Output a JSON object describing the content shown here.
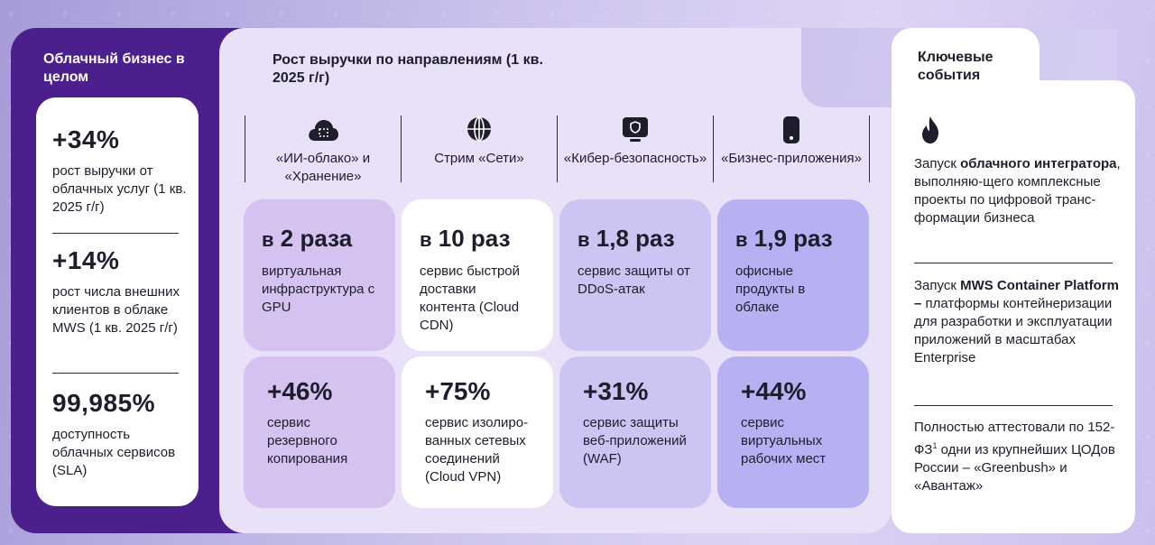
{
  "left": {
    "title": "Облачный бизнес в целом",
    "metrics": [
      {
        "value": "+34%",
        "desc": "рост выручки от облачных услуг (1 кв. 2025 г/г)"
      },
      {
        "value": "+14%",
        "desc": "рост числа внешних клиентов в облаке MWS (1 кв. 2025 г/г)"
      },
      {
        "value": "99,985%",
        "desc": "доступность облачных сервисов (SLA)"
      }
    ]
  },
  "middle": {
    "title": "Рост выручки по направлениям (1 кв. 2025 г/г)",
    "columns": [
      {
        "icon": "cloud-icon",
        "label": "«ИИ-облако» и «Хранение»"
      },
      {
        "icon": "globe-icon",
        "label": "Стрим «Сети»"
      },
      {
        "icon": "shield-monitor-icon",
        "label": "«Кибер-безопасность»"
      },
      {
        "icon": "phone-icon",
        "label": "«Бизнес-приложения»"
      }
    ],
    "row1": [
      {
        "prefix": "в",
        "value": "2 раза",
        "desc": "виртуальная инфраструктура с GPU"
      },
      {
        "prefix": "в",
        "value": "10 раз",
        "desc": "сервис быстрой доставки контента (Cloud CDN)"
      },
      {
        "prefix": "в",
        "value": "1,8 раз",
        "desc": "сервис защиты от DDoS-атак"
      },
      {
        "prefix": "в",
        "value": "1,9 раз",
        "desc": "офисные продукты в облаке"
      }
    ],
    "row2": [
      {
        "value": "+46%",
        "desc": "сервис резервного копирования"
      },
      {
        "value": "+75%",
        "desc": "сервис изолиро-ванных сетевых соединений (Cloud VPN)"
      },
      {
        "value": "+31%",
        "desc": "сервис защиты веб-приложений (WAF)"
      },
      {
        "value": "+44%",
        "desc": "сервис виртуальных рабочих мест"
      }
    ],
    "tile_colors": [
      "#d6c2f0",
      "#ffffff",
      "#cbc5f3",
      "#b7b1f4"
    ]
  },
  "right": {
    "title": "Ключевые события",
    "events": [
      {
        "pre": "Запуск ",
        "bold": "облачного интегратора",
        "post": ", выполняю-щего комплексные проекты по цифровой транс-формации бизнеса"
      },
      {
        "pre": "Запуск ",
        "bold": "MWS Container Platform –",
        "post": " платформы контейнеризации для разработки и эксплуатации приложений в масштабах Enterprise"
      },
      {
        "pre": "Полностью аттестовали по 152-ФЗ",
        "sup": "1",
        "post": " одни из крупнейших ЦОДов России – «Greenbush» и «Авантаж»"
      }
    ]
  }
}
